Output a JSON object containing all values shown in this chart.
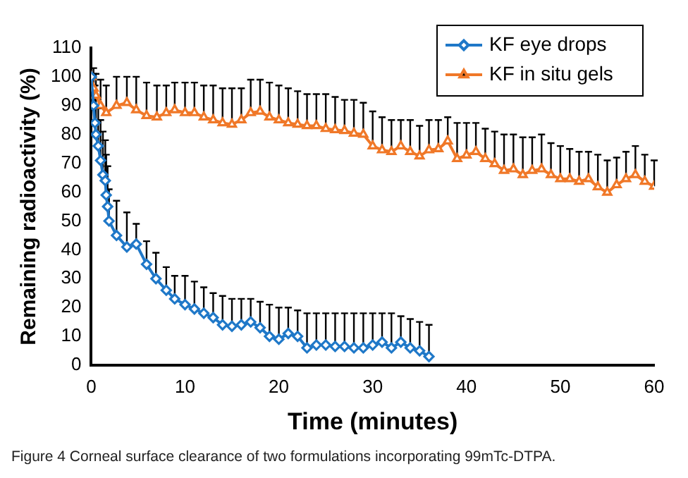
{
  "chart_data": {
    "type": "line",
    "xlabel": "Time (minutes)",
    "ylabel": "Remaining radioactivity (%)",
    "xlim": [
      0,
      60
    ],
    "xticks": [
      0,
      10,
      20,
      30,
      40,
      50,
      60
    ],
    "ylim": [
      0,
      110
    ],
    "yticks": [
      0,
      10,
      20,
      30,
      40,
      50,
      60,
      70,
      80,
      90,
      100,
      110
    ],
    "grid": false,
    "legend": "top right",
    "line_style": "solid",
    "annotations": [
      "Figure 4 Corneal surface clearance of two formulations incorporating 99mTc-DTPA."
    ],
    "series": [
      {
        "name": "KF eye drops",
        "color": "#1f78c8",
        "marker": "diamond",
        "x": [
          0,
          0.25,
          0.4,
          0.5,
          0.75,
          1,
          1.25,
          1.5,
          1.6,
          1.75,
          1.9,
          2.7,
          3.8,
          4.8,
          5.9,
          6.9,
          8,
          8.9,
          10,
          11,
          12,
          13,
          14,
          15,
          16,
          17,
          18,
          19,
          20,
          21,
          22,
          23,
          24,
          25,
          26,
          27,
          28,
          29,
          30,
          31,
          32,
          33,
          34,
          35,
          36
        ],
        "values": [
          100,
          90,
          84,
          80,
          76,
          71,
          66,
          64,
          59,
          55,
          50,
          45,
          41,
          42,
          35,
          30,
          26,
          23,
          21,
          19.5,
          18,
          16.5,
          14,
          13.5,
          14,
          15,
          13,
          10,
          9,
          11,
          10,
          6,
          7,
          7,
          6.5,
          6.5,
          6,
          6,
          7,
          8,
          6,
          8,
          6,
          5,
          3
        ],
        "errors": [
          null,
          [
            90,
            101
          ],
          [
            84,
            97
          ],
          [
            80,
            93
          ],
          [
            76,
            89
          ],
          [
            71,
            85
          ],
          [
            66,
            81
          ],
          [
            64,
            78
          ],
          [
            59,
            73
          ],
          [
            55,
            69
          ],
          [
            50,
            61
          ],
          [
            45,
            57
          ],
          [
            41,
            53
          ],
          [
            42,
            49
          ],
          [
            35,
            43
          ],
          [
            30,
            39
          ],
          [
            26,
            34
          ],
          [
            23,
            31
          ],
          [
            21,
            31
          ],
          [
            19.5,
            29
          ],
          [
            18,
            27
          ],
          [
            16.5,
            25
          ],
          [
            14,
            24
          ],
          [
            13.5,
            23
          ],
          [
            14,
            23
          ],
          [
            15,
            23
          ],
          [
            13,
            22
          ],
          [
            10,
            21
          ],
          [
            9,
            20
          ],
          [
            11,
            20
          ],
          [
            10,
            19
          ],
          [
            6,
            18
          ],
          [
            7,
            18
          ],
          [
            7,
            18
          ],
          [
            6.5,
            18
          ],
          [
            6.5,
            18
          ],
          [
            6,
            18
          ],
          [
            6,
            18
          ],
          [
            7,
            18
          ],
          [
            8,
            18
          ],
          [
            6,
            18
          ],
          [
            8,
            17
          ],
          [
            6,
            16
          ],
          [
            5,
            15
          ],
          [
            3,
            14
          ]
        ]
      },
      {
        "name": "KF in situ gels",
        "color": "#f07828",
        "marker": "triangle",
        "x": [
          0,
          0.25,
          0.5,
          1,
          1.6,
          2.7,
          3.8,
          4.8,
          5.9,
          7,
          8,
          8.9,
          10,
          11,
          12,
          13,
          14,
          15,
          16,
          17,
          18,
          19,
          20,
          21,
          22,
          23,
          24,
          25,
          26,
          27,
          28,
          29,
          30,
          31,
          32,
          33,
          34,
          35,
          36,
          37,
          38,
          39,
          40,
          41,
          42,
          43,
          44,
          45,
          46,
          47,
          48,
          49,
          50,
          51,
          52,
          53,
          54,
          55,
          56,
          57,
          58,
          59,
          60
        ],
        "values": [
          100,
          96,
          93.5,
          90,
          87.5,
          90,
          91,
          88.5,
          86.5,
          86,
          87.5,
          88.5,
          87.5,
          87.5,
          86,
          85,
          84,
          83.5,
          85,
          87.5,
          88,
          86,
          85,
          84,
          83.5,
          83,
          83,
          82,
          81.6,
          81.3,
          80.4,
          80,
          76,
          74.6,
          74,
          76,
          74,
          72.5,
          74.6,
          75,
          77.7,
          71.6,
          72.8,
          74,
          71.6,
          69.8,
          67.5,
          68,
          66,
          67.5,
          68,
          66,
          64.6,
          64.6,
          63.7,
          64.6,
          61.8,
          59.9,
          62.5,
          64.6,
          66,
          63.7,
          62
        ],
        "errors": [
          null,
          [
            96,
            103
          ],
          [
            93.5,
            101
          ],
          [
            90,
            99
          ],
          [
            87.5,
            97
          ],
          [
            90,
            100
          ],
          [
            91,
            100
          ],
          [
            88.5,
            100
          ],
          [
            86.5,
            98
          ],
          [
            86,
            97
          ],
          [
            87.5,
            97
          ],
          [
            88.5,
            98
          ],
          [
            87.5,
            98
          ],
          [
            87.5,
            98
          ],
          [
            86,
            97
          ],
          [
            85,
            97
          ],
          [
            84,
            96
          ],
          [
            83.5,
            96
          ],
          [
            85,
            96
          ],
          [
            87.5,
            99
          ],
          [
            88,
            99
          ],
          [
            86,
            98
          ],
          [
            85,
            97
          ],
          [
            84,
            96
          ],
          [
            83.5,
            95
          ],
          [
            83,
            94
          ],
          [
            83,
            94
          ],
          [
            82,
            94
          ],
          [
            81.6,
            93
          ],
          [
            81.3,
            92
          ],
          [
            80.4,
            92
          ],
          [
            80,
            91
          ],
          [
            76,
            88
          ],
          [
            74.6,
            86
          ],
          [
            74,
            85
          ],
          [
            76,
            85
          ],
          [
            74,
            85
          ],
          [
            72.5,
            83
          ],
          [
            74.6,
            85
          ],
          [
            75,
            85
          ],
          [
            77.7,
            86
          ],
          [
            71.6,
            84
          ],
          [
            72.8,
            84
          ],
          [
            74,
            84
          ],
          [
            71.6,
            82
          ],
          [
            69.8,
            81
          ],
          [
            67.5,
            80
          ],
          [
            68,
            80
          ],
          [
            66,
            79
          ],
          [
            67.5,
            79
          ],
          [
            68,
            80
          ],
          [
            66,
            77
          ],
          [
            64.6,
            76
          ],
          [
            64.6,
            75
          ],
          [
            63.7,
            74
          ],
          [
            64.6,
            74
          ],
          [
            61.8,
            73
          ],
          [
            59.9,
            71
          ],
          [
            62.5,
            72
          ],
          [
            64.6,
            74
          ],
          [
            66,
            76
          ],
          [
            63.7,
            73
          ],
          [
            62,
            71
          ]
        ]
      }
    ]
  }
}
